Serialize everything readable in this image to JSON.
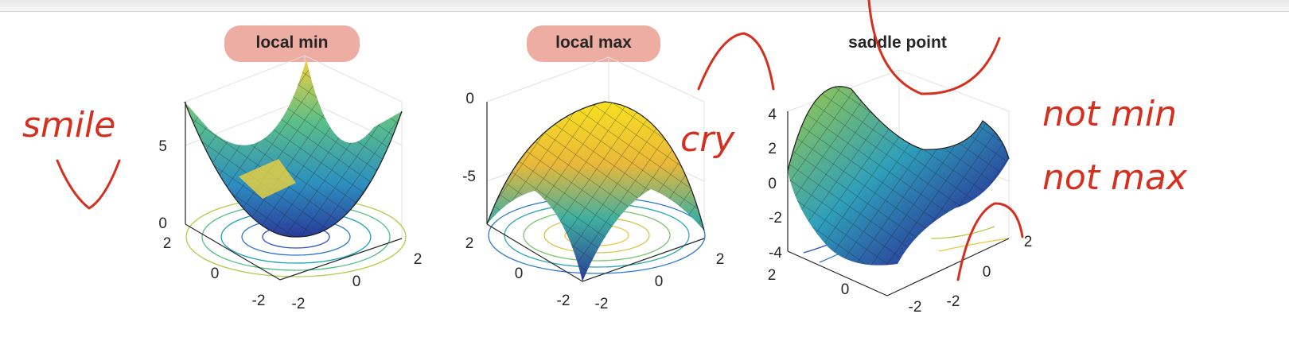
{
  "panels": [
    {
      "title": "local min",
      "title_highlighted": true,
      "surface": "paraboloid-up",
      "z_ticks": [
        "0",
        "5"
      ],
      "y_ticks": [
        "2",
        "0",
        "-2"
      ],
      "x_ticks": [
        "-2",
        "0",
        "2"
      ]
    },
    {
      "title": "local max",
      "title_highlighted": true,
      "surface": "paraboloid-down",
      "z_ticks": [
        "0",
        "-5"
      ],
      "y_ticks": [
        "2",
        "0",
        "-2"
      ],
      "x_ticks": [
        "-2",
        "0",
        "2"
      ]
    },
    {
      "title": "saddle point",
      "title_highlighted": false,
      "surface": "saddle",
      "z_ticks": [
        "4",
        "2",
        "0",
        "-2",
        "-4"
      ],
      "y_ticks": [
        "2",
        "0",
        "-2"
      ],
      "x_ticks": [
        "-2",
        "0",
        "2"
      ]
    }
  ],
  "annotations": {
    "smile": "smile",
    "cry": "cry",
    "not_min": "not min",
    "not_max": "not max"
  },
  "colors": {
    "annotation_ink": "#d5301f",
    "title_highlight": "#eeada3",
    "surface_low": "#2a3b9a",
    "surface_mid": "#2fa7a4",
    "surface_high": "#f8e121"
  }
}
